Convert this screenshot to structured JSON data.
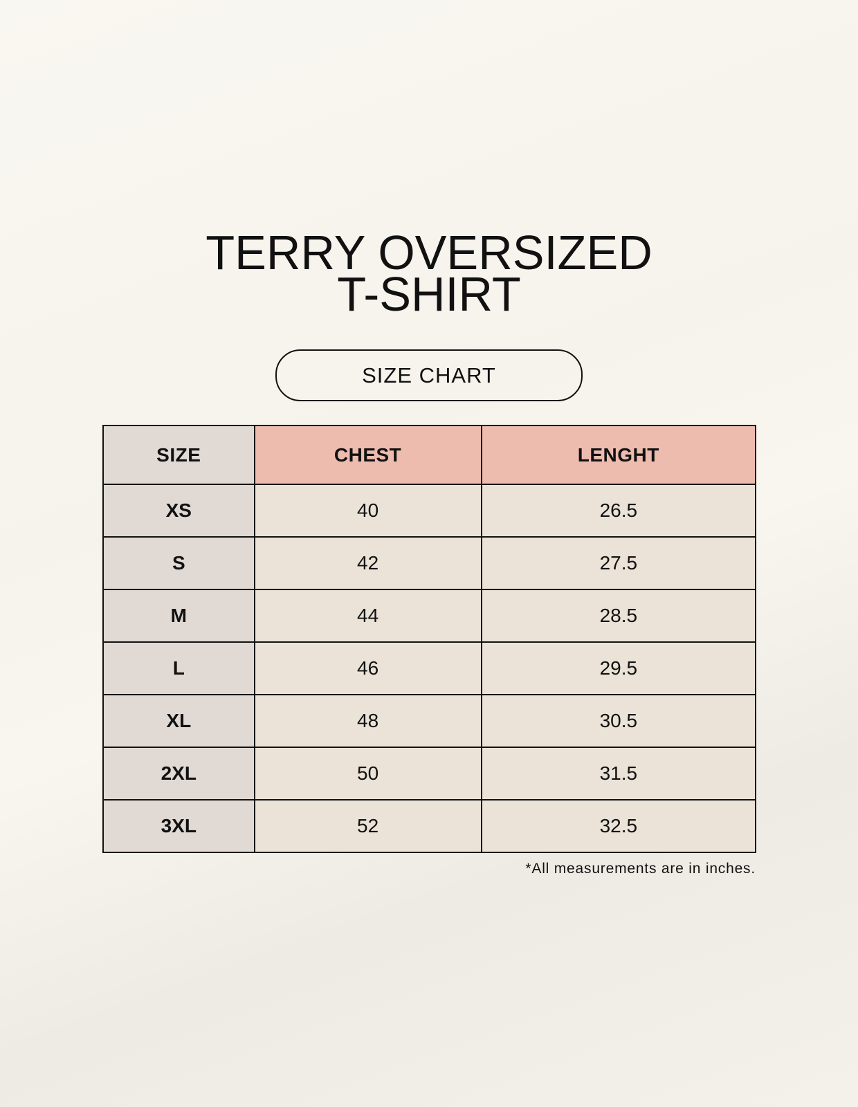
{
  "title": {
    "line1": "TERRY OVERSIZED",
    "line2": "T-SHIRT"
  },
  "badge": "SIZE CHART",
  "table": {
    "headers": [
      "SIZE",
      "CHEST",
      "LENGHT"
    ],
    "rows": [
      [
        "XS",
        "40",
        "26.5"
      ],
      [
        "S",
        "42",
        "27.5"
      ],
      [
        "M",
        "44",
        "28.5"
      ],
      [
        "L",
        "46",
        "29.5"
      ],
      [
        "XL",
        "48",
        "30.5"
      ],
      [
        "2XL",
        "50",
        "31.5"
      ],
      [
        "3XL",
        "52",
        "32.5"
      ]
    ]
  },
  "footnote": "*All measurements are in inches.",
  "colors": {
    "header_accent": "#edbcaf",
    "size_column": "#e0d9d4",
    "cell": "#ebe3d8"
  }
}
